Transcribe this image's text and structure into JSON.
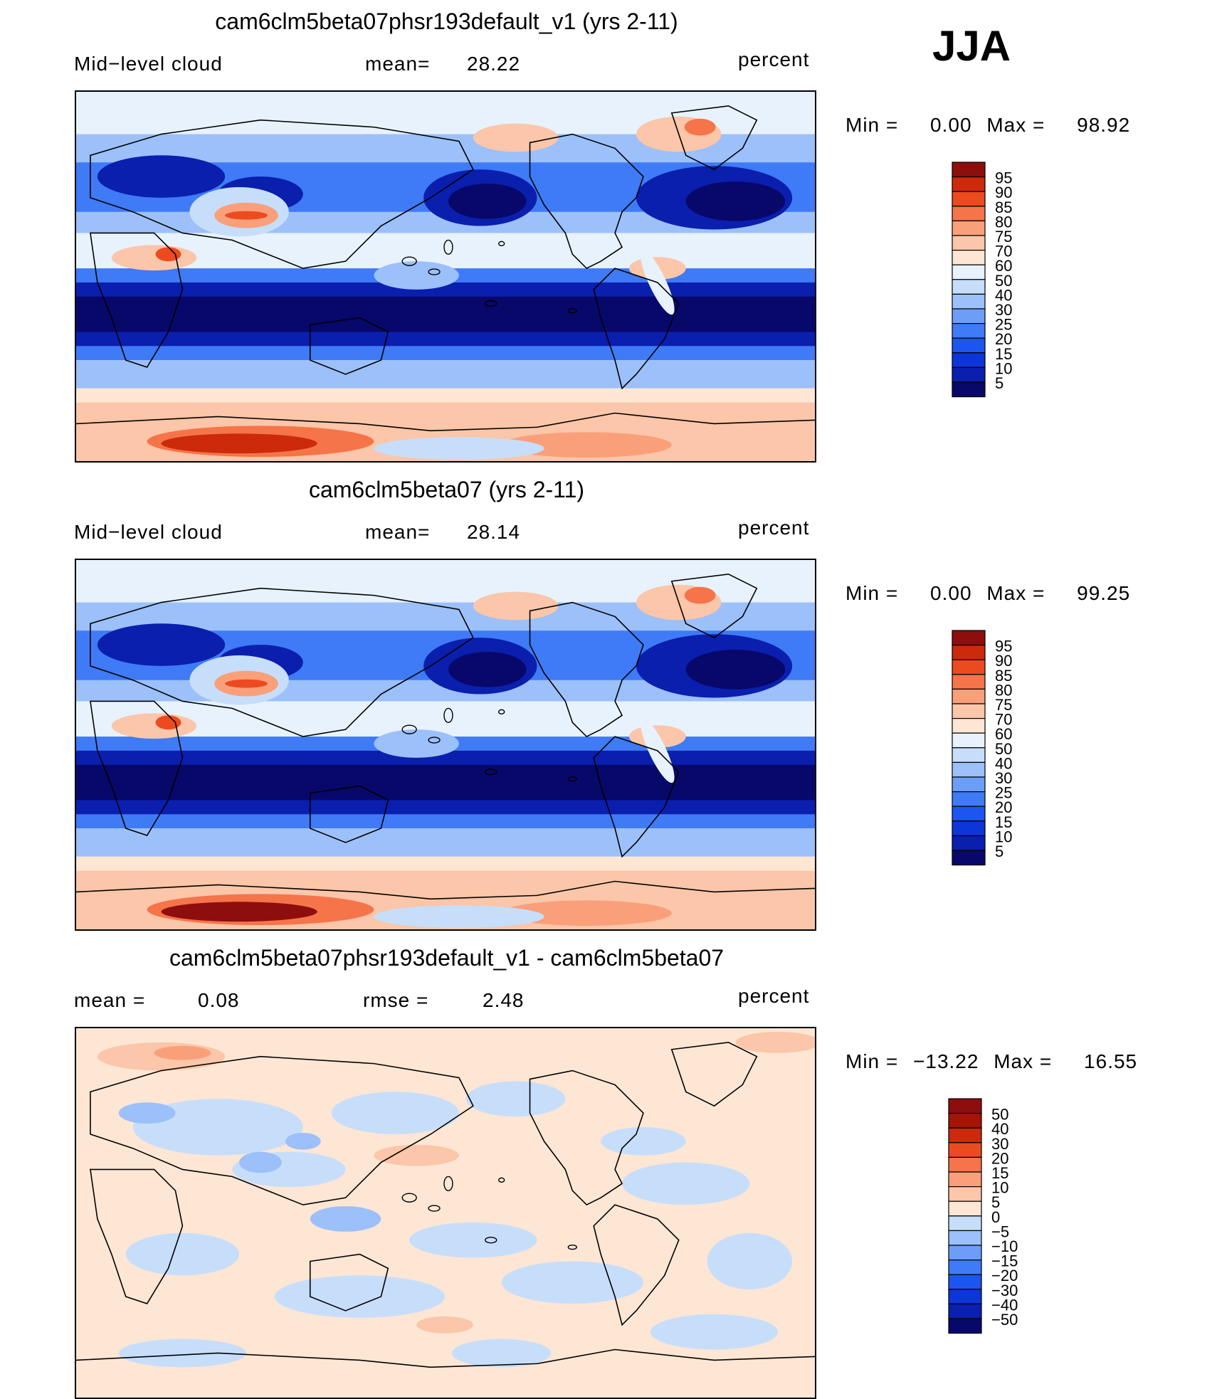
{
  "season": "JJA",
  "panels": [
    {
      "title": "cam6clm5beta07phsr193default_v1 (yrs 2-11)",
      "left_label": "Mid−level cloud",
      "stat1_label": "mean=",
      "stat1_value": "28.22",
      "stat2_label": "",
      "stat2_value": "",
      "units": "percent",
      "min_label": "Min =",
      "min_value": "0.00",
      "max_label": "Max =",
      "max_value": "98.92",
      "colorbar": [
        "95",
        "90",
        "85",
        "80",
        "75",
        "70",
        "60",
        "50",
        "40",
        "30",
        "25",
        "20",
        "15",
        "10",
        "5"
      ]
    },
    {
      "title": "cam6clm5beta07 (yrs 2-11)",
      "left_label": "Mid−level cloud",
      "stat1_label": "mean=",
      "stat1_value": "28.14",
      "stat2_label": "",
      "stat2_value": "",
      "units": "percent",
      "min_label": "Min =",
      "min_value": "0.00",
      "max_label": "Max =",
      "max_value": "99.25",
      "colorbar": [
        "95",
        "90",
        "85",
        "80",
        "75",
        "70",
        "60",
        "50",
        "40",
        "30",
        "25",
        "20",
        "15",
        "10",
        "5"
      ]
    },
    {
      "title": "cam6clm5beta07phsr193default_v1 - cam6clm5beta07",
      "left_label": "mean =",
      "stat1_label": "",
      "stat1_value": "0.08",
      "stat2_label": "rmse =",
      "stat2_value": "2.48",
      "units": "percent",
      "min_label": "Min =",
      "min_value": "−13.22",
      "max_label": "Max =",
      "max_value": "16.55",
      "colorbar": [
        "50",
        "40",
        "30",
        "20",
        "15",
        "10",
        "5",
        "0",
        "−5",
        "−10",
        "−15",
        "−20",
        "−30",
        "−40",
        "−50"
      ]
    }
  ],
  "colors": {
    "abs_scale": [
      "#08086b",
      "#0a1fae",
      "#0d36d8",
      "#1d55f0",
      "#3f7af7",
      "#6c9ef8",
      "#9cc0f9",
      "#c7defb",
      "#e8f2fd",
      "#fde6d4",
      "#fbc6a9",
      "#f9a07a",
      "#f5744a",
      "#ec4b1f",
      "#cc2a0b",
      "#8e0d0d"
    ],
    "diff_scale": [
      "#08086b",
      "#0a1fae",
      "#0d36d8",
      "#1d55f0",
      "#3f7af7",
      "#6c9ef8",
      "#9cc0f9",
      "#c7defb",
      "#fde6d4",
      "#fbc6a9",
      "#f9a07a",
      "#f5744a",
      "#ec4b1f",
      "#cc2a0b",
      "#a41505",
      "#8e0d0d"
    ]
  },
  "chart_data": [
    {
      "type": "heatmap",
      "title": "cam6clm5beta07phsr193default_v1 (yrs 2-11)",
      "variable": "Mid-level cloud",
      "units": "percent",
      "mean": 28.22,
      "min": 0.0,
      "max": 98.92,
      "levels": [
        5,
        10,
        15,
        20,
        25,
        30,
        40,
        50,
        60,
        70,
        75,
        80,
        85,
        90,
        95
      ]
    },
    {
      "type": "heatmap",
      "title": "cam6clm5beta07 (yrs 2-11)",
      "variable": "Mid-level cloud",
      "units": "percent",
      "mean": 28.14,
      "min": 0.0,
      "max": 99.25,
      "levels": [
        5,
        10,
        15,
        20,
        25,
        30,
        40,
        50,
        60,
        70,
        75,
        80,
        85,
        90,
        95
      ]
    },
    {
      "type": "heatmap",
      "title": "cam6clm5beta07phsr193default_v1 - cam6clm5beta07",
      "units": "percent",
      "mean": 0.08,
      "rmse": 2.48,
      "min": -13.22,
      "max": 16.55,
      "levels": [
        -50,
        -40,
        -30,
        -20,
        -15,
        -10,
        -5,
        0,
        5,
        10,
        15,
        20,
        30,
        40,
        50
      ]
    }
  ]
}
